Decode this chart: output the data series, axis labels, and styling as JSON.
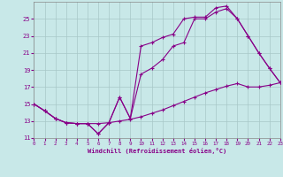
{
  "xlabel": "Windchill (Refroidissement éolien,°C)",
  "bg_color": "#c8e8e8",
  "grid_color": "#a8c8c8",
  "line_color": "#880088",
  "xlim": [
    0,
    23
  ],
  "ylim": [
    11,
    27
  ],
  "xticks": [
    0,
    1,
    2,
    3,
    4,
    5,
    6,
    7,
    8,
    9,
    10,
    11,
    12,
    13,
    14,
    15,
    16,
    17,
    18,
    19,
    20,
    21,
    22,
    23
  ],
  "yticks": [
    11,
    13,
    15,
    17,
    19,
    21,
    23,
    25
  ],
  "series": [
    {
      "x": [
        0,
        1,
        2,
        3,
        4,
        5,
        6,
        7,
        8,
        9,
        10,
        11,
        12,
        13,
        14,
        15,
        16,
        17,
        18,
        19,
        20,
        21,
        22,
        23
      ],
      "y": [
        15.0,
        14.2,
        13.3,
        12.8,
        12.7,
        12.7,
        12.7,
        12.8,
        13.0,
        13.2,
        13.5,
        13.9,
        14.3,
        14.8,
        15.3,
        15.8,
        16.3,
        16.7,
        17.1,
        17.4,
        17.0,
        17.0,
        17.2,
        17.5
      ]
    },
    {
      "x": [
        0,
        1,
        2,
        3,
        4,
        5,
        6,
        7,
        8,
        9,
        10,
        11,
        12,
        13,
        14,
        15,
        16,
        17,
        18,
        19,
        20,
        21,
        22,
        23
      ],
      "y": [
        15.0,
        14.2,
        13.3,
        12.8,
        12.7,
        12.7,
        11.5,
        12.8,
        15.8,
        13.3,
        18.5,
        19.2,
        20.2,
        21.8,
        22.2,
        25.0,
        25.0,
        25.8,
        26.2,
        25.0,
        23.0,
        21.0,
        19.2,
        17.5
      ]
    },
    {
      "x": [
        0,
        1,
        2,
        3,
        4,
        5,
        6,
        7,
        8,
        9,
        10,
        11,
        12,
        13,
        14,
        15,
        16,
        17,
        18,
        19,
        20,
        21,
        22,
        23
      ],
      "y": [
        15.0,
        14.2,
        13.3,
        12.8,
        12.7,
        12.7,
        11.5,
        12.8,
        15.8,
        13.3,
        21.8,
        22.2,
        22.8,
        23.2,
        25.0,
        25.2,
        25.2,
        26.3,
        26.5,
        25.0,
        23.0,
        21.0,
        19.2,
        17.5
      ]
    }
  ]
}
